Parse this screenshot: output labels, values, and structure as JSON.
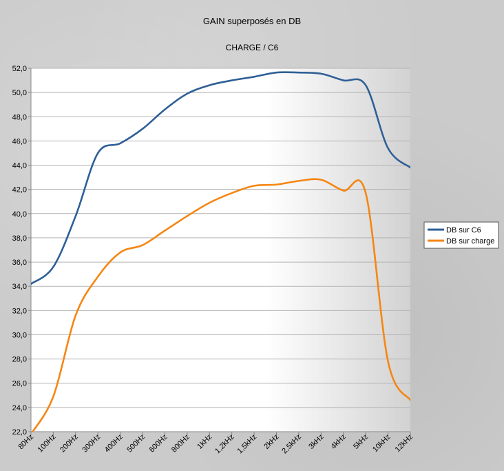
{
  "chart_data": {
    "type": "line",
    "title": "GAIN superposés en DB",
    "subtitle": "CHARGE / C6",
    "xlabel": "",
    "ylabel": "",
    "categories": [
      "80Hz",
      "100Hz",
      "200Hz",
      "300Hz",
      "400Hz",
      "500Hz",
      "600Hz",
      "800Hz",
      "1kHz",
      "1,2kHz",
      "1,5kHz",
      "2kHz",
      "2,5kHz",
      "3kHz",
      "4kHz",
      "5kHz",
      "10kHz",
      "12kHz"
    ],
    "ylim": [
      22.0,
      52.0
    ],
    "yticks": [
      "22,0",
      "24,0",
      "26,0",
      "28,0",
      "30,0",
      "32,0",
      "34,0",
      "36,0",
      "38,0",
      "40,0",
      "42,0",
      "44,0",
      "46,0",
      "48,0",
      "50,0",
      "52,0"
    ],
    "grid": true,
    "legend_position": "right",
    "series": [
      {
        "name": "DB sur C6",
        "color": "#2e5f96",
        "values": [
          34.2,
          35.6,
          39.8,
          45.0,
          45.8,
          47.0,
          48.6,
          49.9,
          50.6,
          51.0,
          51.3,
          51.65,
          51.65,
          51.55,
          51.0,
          50.6,
          45.4,
          43.8
        ]
      },
      {
        "name": "DB sur charge",
        "color": "#f58613",
        "values": [
          21.8,
          24.9,
          31.6,
          34.8,
          36.8,
          37.4,
          38.6,
          39.8,
          40.9,
          41.7,
          42.3,
          42.4,
          42.7,
          42.8,
          41.9,
          41.7,
          27.8,
          24.6
        ]
      }
    ]
  }
}
